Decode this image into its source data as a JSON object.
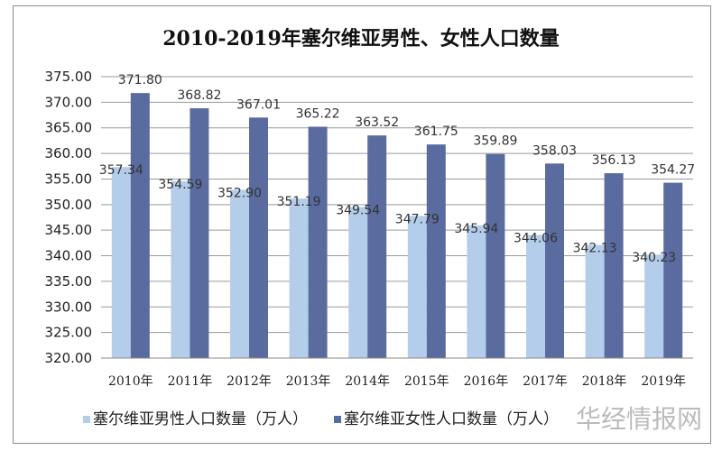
{
  "chart_data": {
    "type": "bar",
    "title": "2010-2019年塞尔维亚男性、女性人口数量",
    "categories": [
      "2010年",
      "2011年",
      "2012年",
      "2013年",
      "2014年",
      "2015年",
      "2016年",
      "2017年",
      "2018年",
      "2019年"
    ],
    "series": [
      {
        "name": "塞尔维亚男性人口数量（万人）",
        "color": "#b4cdeb",
        "values": [
          357.34,
          354.59,
          352.9,
          351.19,
          349.54,
          347.79,
          345.94,
          344.06,
          342.13,
          340.23
        ]
      },
      {
        "name": "塞尔维亚女性人口数量（万人）",
        "color": "#5a6ba0",
        "values": [
          371.8,
          368.82,
          367.01,
          365.22,
          363.52,
          361.75,
          359.89,
          358.03,
          356.13,
          354.27
        ]
      }
    ],
    "ylim": [
      320,
      375
    ],
    "yticks": [
      "320.00",
      "325.00",
      "330.00",
      "335.00",
      "340.00",
      "345.00",
      "350.00",
      "355.00",
      "360.00",
      "365.00",
      "370.00",
      "375.00"
    ],
    "grid": true,
    "legend_position": "bottom",
    "xlabel": "",
    "ylabel": ""
  },
  "watermark": "华经情报网"
}
